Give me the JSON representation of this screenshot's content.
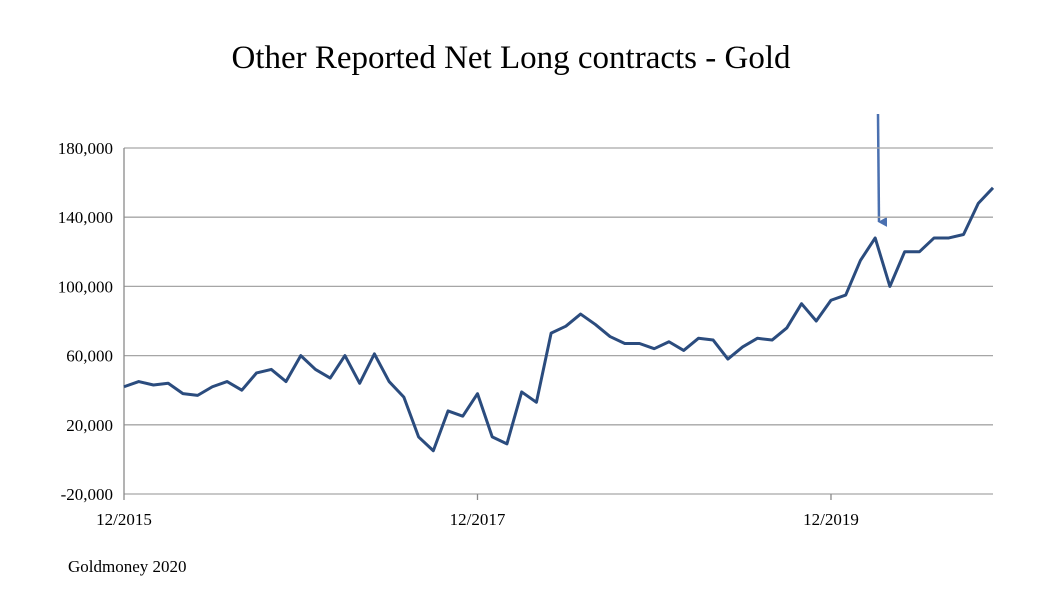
{
  "chart_data": {
    "type": "line",
    "title": "Other Reported Net Long contracts - Gold",
    "source": "Goldmoney 2020",
    "x": [
      "12/2015",
      "01/2016",
      "02/2016",
      "03/2016",
      "04/2016",
      "05/2016",
      "06/2016",
      "07/2016",
      "08/2016",
      "09/2016",
      "10/2016",
      "11/2016",
      "12/2016",
      "01/2017",
      "02/2017",
      "03/2017",
      "04/2017",
      "05/2017",
      "06/2017",
      "07/2017",
      "08/2017",
      "09/2017",
      "10/2017",
      "11/2017",
      "12/2017",
      "01/2018",
      "02/2018",
      "03/2018",
      "04/2018",
      "05/2018",
      "06/2018",
      "07/2018",
      "08/2018",
      "09/2018",
      "10/2018",
      "11/2018",
      "12/2018",
      "01/2019",
      "02/2019",
      "03/2019",
      "04/2019",
      "05/2019",
      "06/2019",
      "07/2019",
      "08/2019",
      "09/2019",
      "10/2019",
      "11/2019",
      "12/2019",
      "01/2020",
      "02/2020",
      "03/2020",
      "04/2020",
      "05/2020",
      "06/2020",
      "07/2020",
      "08/2020",
      "09/2020",
      "10/2020",
      "11/2020"
    ],
    "series": [
      {
        "name": "Other Reported Net Long",
        "color": "#2b4c7e",
        "values": [
          42000,
          45000,
          43000,
          44000,
          38000,
          37000,
          42000,
          45000,
          40000,
          50000,
          52000,
          45000,
          60000,
          52000,
          47000,
          60000,
          44000,
          61000,
          45000,
          36000,
          13000,
          5000,
          28000,
          25000,
          38000,
          13000,
          9000,
          39000,
          33000,
          73000,
          77000,
          84000,
          78000,
          71000,
          67000,
          67000,
          64000,
          68000,
          63000,
          70000,
          69000,
          58000,
          65000,
          70000,
          69000,
          76000,
          90000,
          80000,
          92000,
          95000,
          115000,
          128000,
          100000,
          120000,
          120000,
          128000,
          128000,
          130000,
          148000,
          157000
        ]
      }
    ],
    "xlim": [
      "12/2015",
      "11/2020"
    ],
    "xticks": [
      "12/2015",
      "12/2017",
      "12/2019"
    ],
    "ylim": [
      -20000,
      180000
    ],
    "yticks": [
      {
        "value": -20000,
        "label": "-20,000"
      },
      {
        "value": 20000,
        "label": "20,000"
      },
      {
        "value": 60000,
        "label": "60,000"
      },
      {
        "value": 100000,
        "label": "100,000"
      },
      {
        "value": 140000,
        "label": "140,000"
      },
      {
        "value": 180000,
        "label": "180,000"
      }
    ],
    "grid": true
  }
}
